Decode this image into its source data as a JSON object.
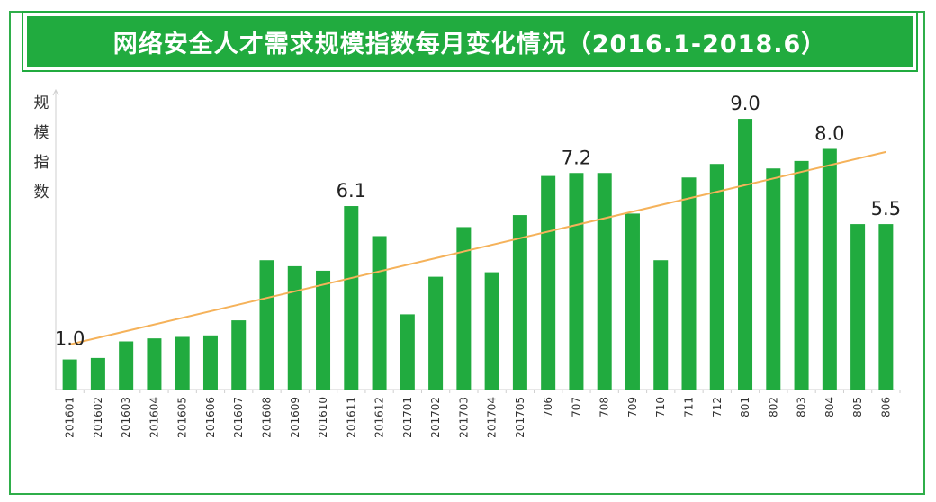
{
  "chart_data": {
    "type": "bar",
    "title": "网络安全人才需求规模指数每月变化情况（2016.1-2018.6）",
    "ylabel": "规模指数",
    "ylim": [
      0,
      9.6
    ],
    "grid": false,
    "legend": "none",
    "bar_color": "#21ab3f",
    "trend_color": "#f5b25a",
    "categories": [
      "201601",
      "201602",
      "201603",
      "201604",
      "201605",
      "201606",
      "201607",
      "201608",
      "201609",
      "201610",
      "201611",
      "201612",
      "201701",
      "201702",
      "201703",
      "201704",
      "201705",
      "706",
      "707",
      "708",
      "709",
      "710",
      "711",
      "712",
      "801",
      "802",
      "803",
      "804",
      "805",
      "806"
    ],
    "values": [
      1.0,
      1.05,
      1.6,
      1.7,
      1.75,
      1.8,
      2.3,
      4.3,
      4.1,
      3.95,
      6.1,
      5.1,
      2.5,
      3.75,
      5.4,
      3.9,
      5.8,
      7.1,
      7.2,
      7.2,
      5.85,
      4.3,
      7.05,
      7.5,
      9.0,
      7.35,
      7.6,
      8.0,
      5.5,
      5.5
    ],
    "data_labels": [
      {
        "index": 0,
        "text": "1.0"
      },
      {
        "index": 10,
        "text": "6.1"
      },
      {
        "index": 18,
        "text": "7.2"
      },
      {
        "index": 24,
        "text": "9.0"
      },
      {
        "index": 27,
        "text": "8.0"
      },
      {
        "index": 29,
        "text": "5.5"
      }
    ],
    "trendline": {
      "start": 1.5,
      "end": 7.9
    }
  }
}
